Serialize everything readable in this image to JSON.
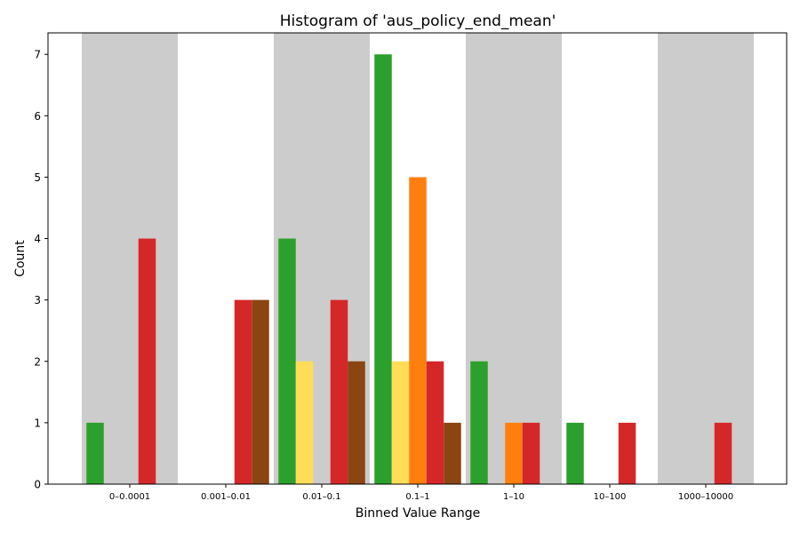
{
  "chart_data": {
    "type": "bar",
    "title": "Histogram of 'aus_policy_end_mean'",
    "xlabel": "Binned Value Range",
    "ylabel": "Count",
    "categories": [
      "0–0.0001",
      "0.001–0.01",
      "0.01–0.1",
      "0.1–1",
      "1–10",
      "10–100",
      "1000–10000"
    ],
    "yticks": [
      "0",
      "1",
      "2",
      "3",
      "4",
      "5",
      "6",
      "7"
    ],
    "ylim": [
      0,
      7.35
    ],
    "grid": false,
    "legend": "none",
    "shaded_categories": [
      0,
      2,
      4,
      6
    ],
    "shade_color": "#cccccc",
    "series": [
      {
        "color": "#2ca02c",
        "values": [
          1,
          0,
          4,
          7,
          2,
          1,
          0
        ]
      },
      {
        "color": "#ffdd57",
        "values": [
          0,
          0,
          2,
          2,
          0,
          0,
          0
        ]
      },
      {
        "color": "#ff7f0e",
        "values": [
          0,
          0,
          0,
          5,
          1,
          0,
          0
        ]
      },
      {
        "color": "#d62728",
        "values": [
          4,
          3,
          3,
          2,
          1,
          1,
          1
        ]
      },
      {
        "color": "#8b4513",
        "values": [
          0,
          3,
          2,
          1,
          0,
          0,
          0
        ]
      }
    ]
  }
}
